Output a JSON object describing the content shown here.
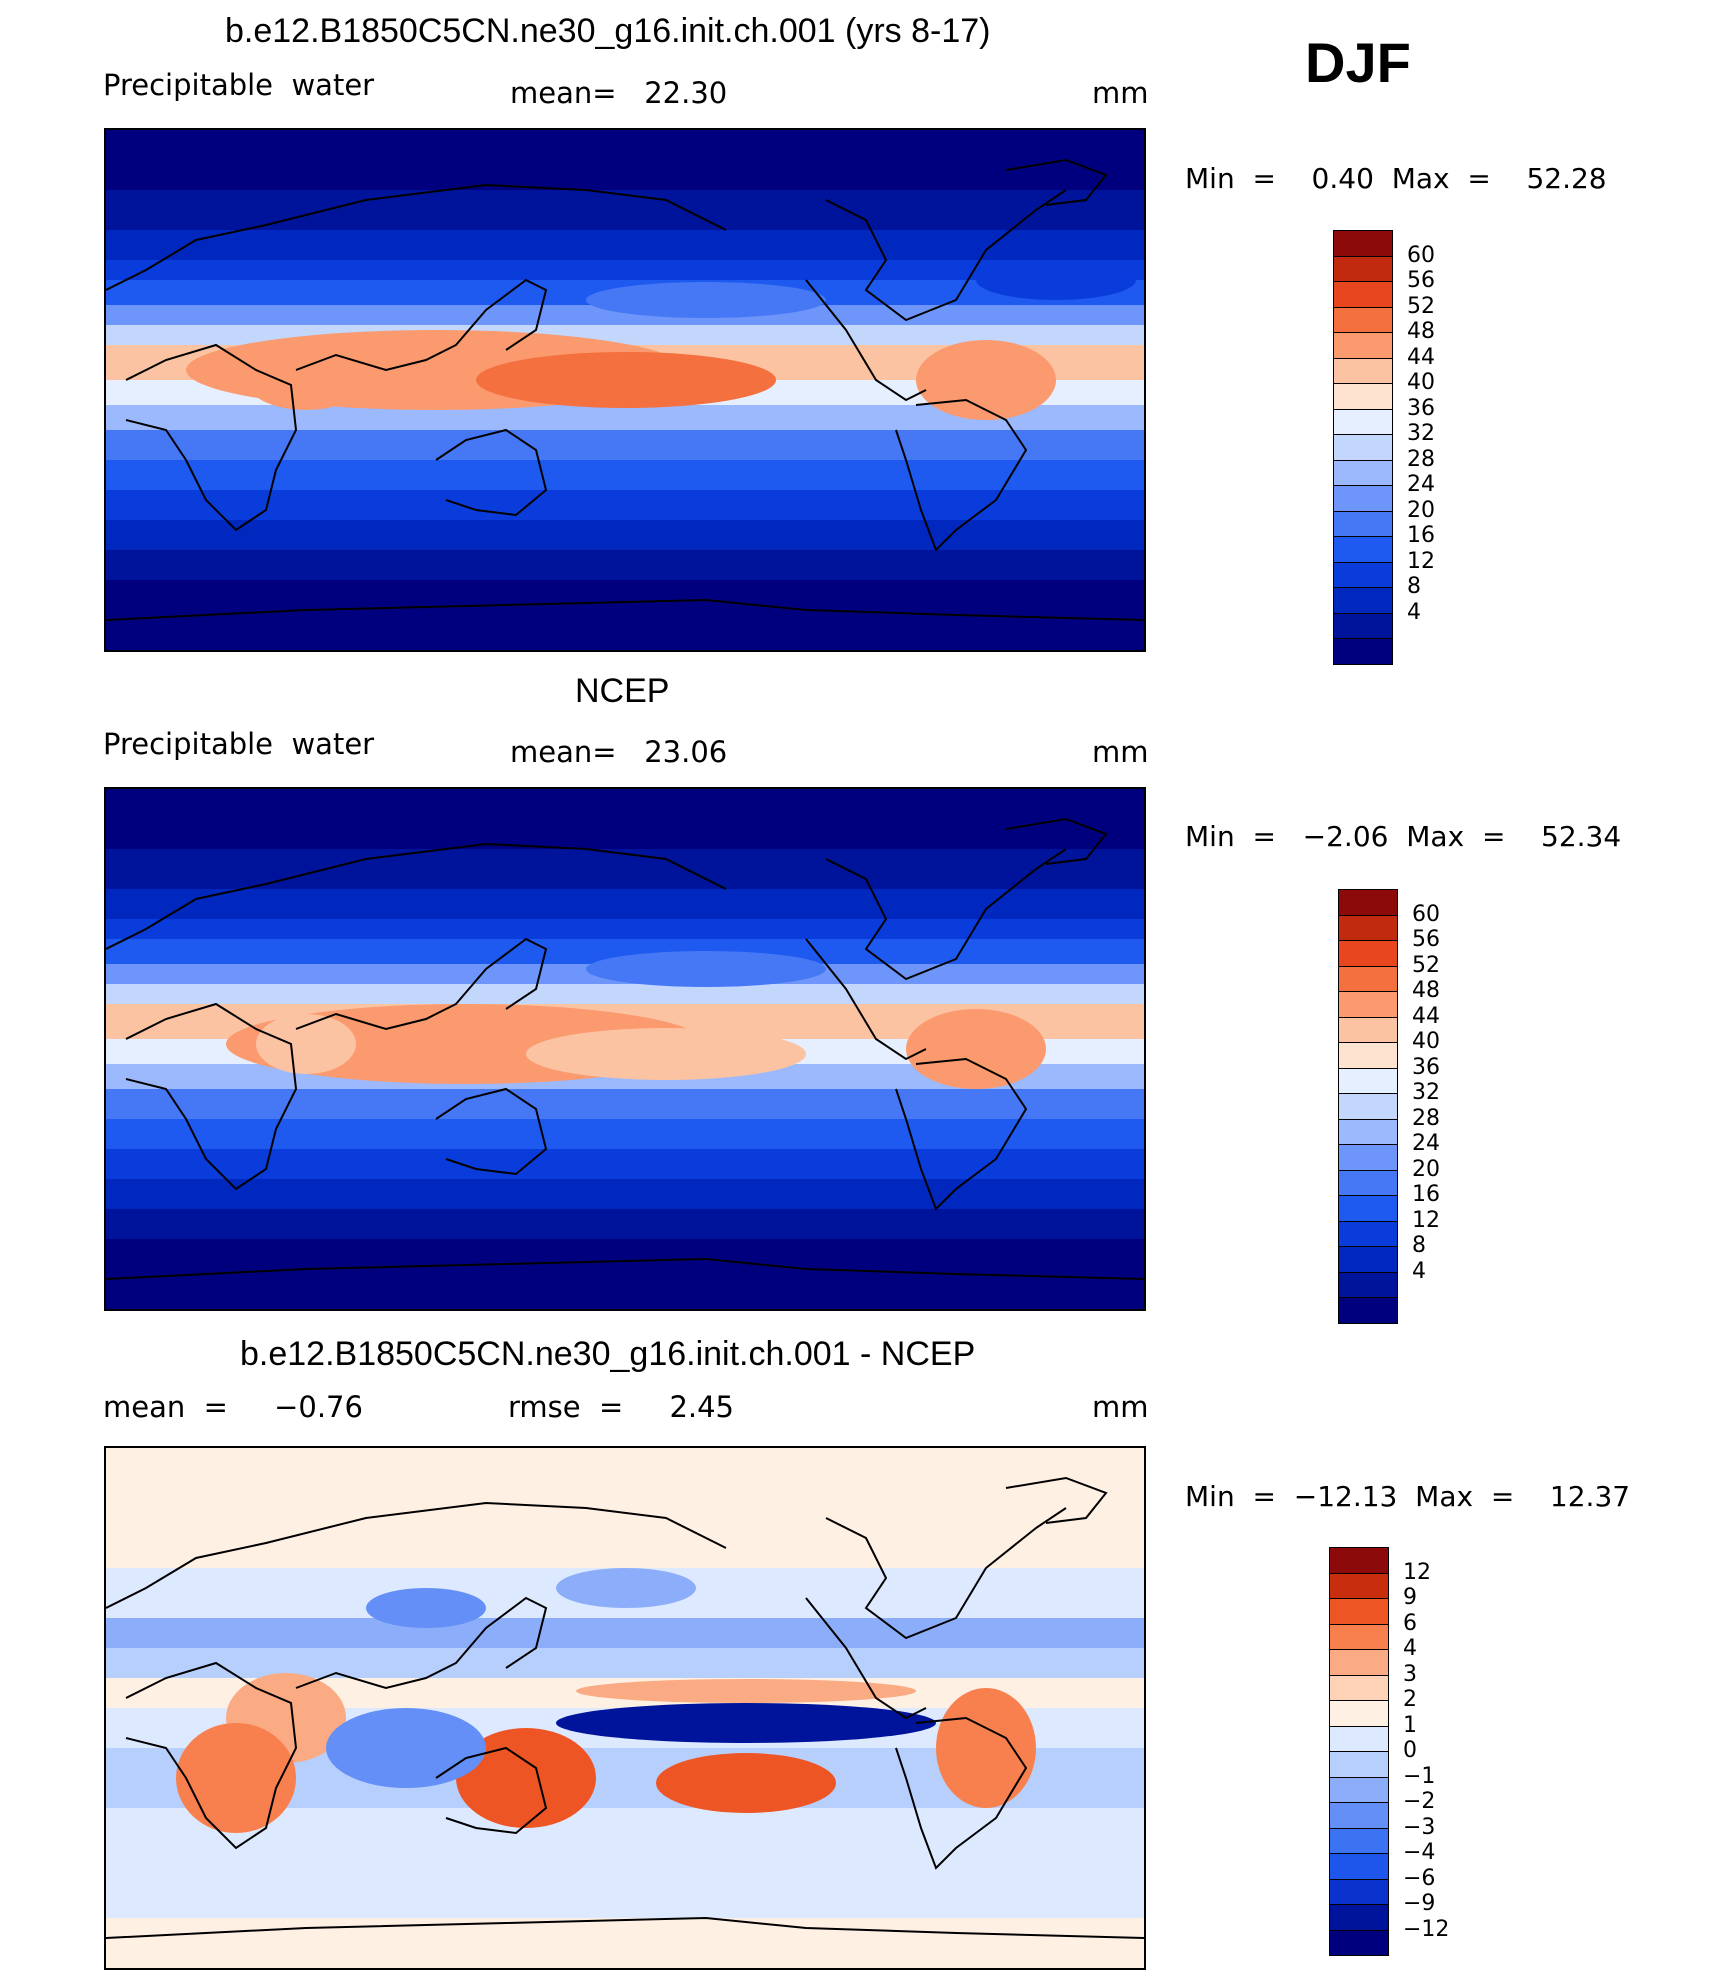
{
  "season": "DJF",
  "panels": [
    {
      "title": "b.e12.B1850C5CN.ne30_g16.init.ch.001 (yrs 8-17)",
      "left_label": "Precipitable  water",
      "center_label": "mean=   22.30",
      "units": "mm",
      "minmax": "Min  =    0.40  Max  =    52.28",
      "colorbar_levels": [
        "60",
        "56",
        "52",
        "48",
        "44",
        "40",
        "36",
        "32",
        "28",
        "24",
        "20",
        "16",
        "12",
        "8",
        "4"
      ]
    },
    {
      "title": "NCEP",
      "left_label": "Precipitable  water",
      "center_label": "mean=   23.06",
      "units": "mm",
      "minmax": "Min  =   −2.06  Max  =    52.34",
      "colorbar_levels": [
        "60",
        "56",
        "52",
        "48",
        "44",
        "40",
        "36",
        "32",
        "28",
        "24",
        "20",
        "16",
        "12",
        "8",
        "4"
      ]
    },
    {
      "title": "b.e12.B1850C5CN.ne30_g16.init.ch.001 - NCEP",
      "left_label": "mean  =     −0.76",
      "center_label": "rmse  =     2.45",
      "units": "mm",
      "minmax": "Min  =  −12.13  Max  =    12.37",
      "colorbar_levels": [
        "12",
        "9",
        "6",
        "4",
        "3",
        "2",
        "1",
        "0",
        "−1",
        "−2",
        "−3",
        "−4",
        "−6",
        "−9",
        "−12"
      ]
    }
  ],
  "chart_data": [
    {
      "type": "heatmap",
      "title": "b.e12.B1850C5CN.ne30_g16.init.ch.001 (yrs 8-17)",
      "variable": "Precipitable  water",
      "units": "mm",
      "mean": 22.3,
      "min": 0.4,
      "max": 52.28,
      "levels": [
        4,
        8,
        12,
        16,
        20,
        24,
        28,
        32,
        36,
        40,
        44,
        48,
        52,
        56,
        60
      ],
      "colors": [
        "#00007f",
        "#00149b",
        "#0028be",
        "#0a3cdc",
        "#1e5af0",
        "#4678f5",
        "#6e96fa",
        "#9bb9fc",
        "#c3d7fd",
        "#e6efff",
        "#fde3d0",
        "#fcc3a3",
        "#fa9a6e",
        "#f5703f",
        "#e8461e",
        "#c22a10",
        "#8c0a0a"
      ]
    },
    {
      "type": "heatmap",
      "title": "NCEP",
      "variable": "Precipitable  water",
      "units": "mm",
      "mean": 23.06,
      "min": -2.06,
      "max": 52.34,
      "levels": [
        4,
        8,
        12,
        16,
        20,
        24,
        28,
        32,
        36,
        40,
        44,
        48,
        52,
        56,
        60
      ]
    },
    {
      "type": "heatmap",
      "title": "b.e12.B1850C5CN.ne30_g16.init.ch.001 - NCEP",
      "units": "mm",
      "mean": -0.76,
      "rmse": 2.45,
      "min": -12.13,
      "max": 12.37,
      "levels": [
        -12,
        -9,
        -6,
        -4,
        -3,
        -2,
        -1,
        0,
        1,
        2,
        3,
        4,
        6,
        9,
        12
      ],
      "colors": [
        "#00007f",
        "#00149b",
        "#0a32cc",
        "#1e55ea",
        "#3c73f2",
        "#648ff7",
        "#8caefa",
        "#b7cffc",
        "#dde9fe",
        "#fff0e4",
        "#fdd2b7",
        "#fbab83",
        "#f8804f",
        "#ee5524",
        "#c82d0e",
        "#8c0a0a"
      ]
    }
  ]
}
